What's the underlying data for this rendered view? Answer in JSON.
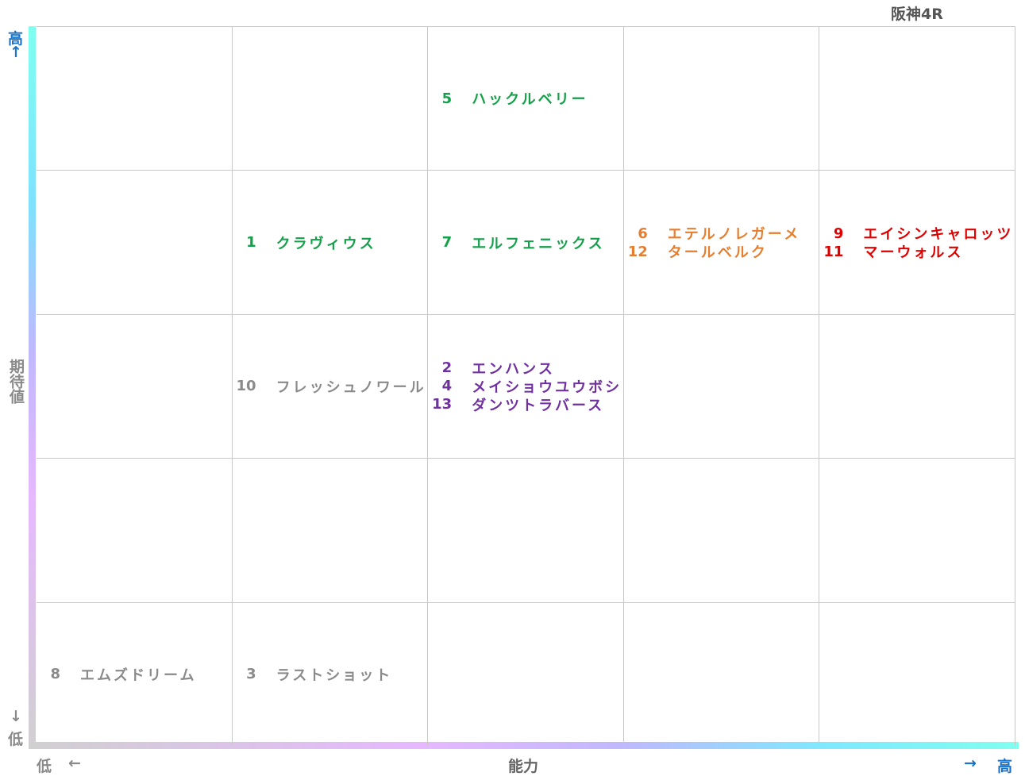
{
  "title": "阪神4R",
  "y_axis": {
    "high": "高",
    "up_arrow": "↑",
    "label": "期待値",
    "down_arrow": "↓",
    "low": "低"
  },
  "x_axis": {
    "low": "低",
    "left_arrow": "←",
    "label": "能力",
    "right_arrow": "→",
    "high": "高"
  },
  "grid": {
    "rows": [
      [
        [],
        [],
        [
          {
            "number": 5,
            "name": "ハックルベリー",
            "color": "#14a04a"
          }
        ],
        [],
        []
      ],
      [
        [],
        [
          {
            "number": 1,
            "name": "クラヴィウス",
            "color": "#14a04a"
          }
        ],
        [
          {
            "number": 7,
            "name": "エルフェニックス",
            "color": "#14a04a"
          }
        ],
        [
          {
            "number": 6,
            "name": "エテルノレガーメ",
            "color": "#e67e2e"
          },
          {
            "number": 12,
            "name": "タールベルク",
            "color": "#e67e2e"
          }
        ],
        [
          {
            "number": 9,
            "name": "エイシンキャロッツ",
            "color": "#e00000"
          },
          {
            "number": 11,
            "name": "マーウォルス",
            "color": "#e00000"
          }
        ]
      ],
      [
        [],
        [
          {
            "number": 10,
            "name": "フレッシュノワール",
            "color": "#8a8a8a"
          }
        ],
        [
          {
            "number": 2,
            "name": "エンハンス",
            "color": "#7030a0"
          },
          {
            "number": 4,
            "name": "メイショウユウボシ",
            "color": "#7030a0"
          },
          {
            "number": 13,
            "name": "ダンツトラバース",
            "color": "#7030a0"
          }
        ],
        [],
        []
      ],
      [
        [],
        [],
        [],
        [],
        []
      ],
      [
        [
          {
            "number": 8,
            "name": "エムズドリーム",
            "color": "#8a8a8a"
          }
        ],
        [
          {
            "number": 3,
            "name": "ラストショット",
            "color": "#8a8a8a"
          }
        ],
        [],
        [],
        []
      ]
    ]
  }
}
